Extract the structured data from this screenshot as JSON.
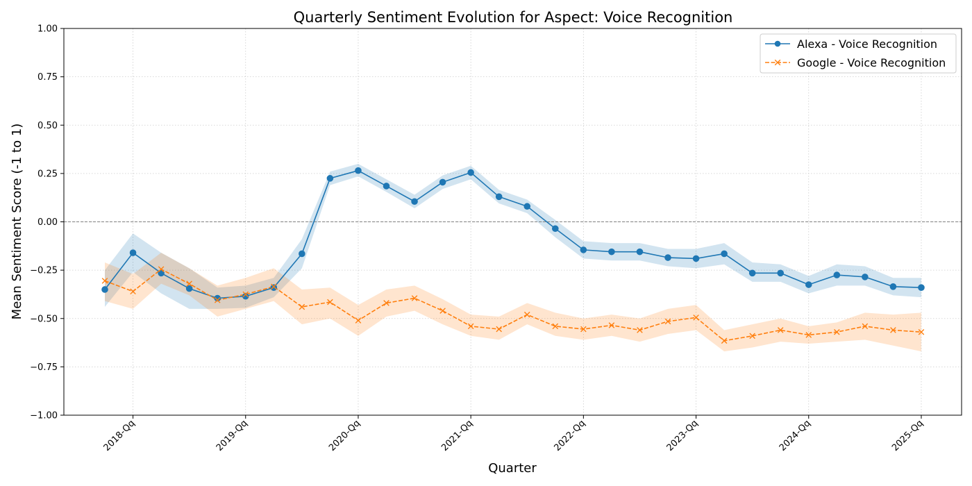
{
  "chart_data": {
    "type": "line",
    "title": "Quarterly Sentiment Evolution for Aspect: Voice Recognition",
    "xlabel": "Quarter",
    "ylabel": "Mean Sentiment Score (-1 to 1)",
    "ylim": [
      -1,
      1
    ],
    "yticks": [
      "-1.00",
      "-0.75",
      "-0.50",
      "-0.25",
      "0.00",
      "0.25",
      "0.50",
      "0.75",
      "1.00"
    ],
    "x_tick_labels": [
      "2018-Qq",
      "2019-Qq",
      "2020-Qq",
      "2021-Qq",
      "2022-Qq",
      "2023-Qq",
      "2024-Qq",
      "2025-Qq"
    ],
    "x_tick_indices": [
      1,
      5,
      9,
      13,
      17,
      21,
      25,
      29
    ],
    "grid": true,
    "reference_line": 0,
    "legend_position": "top-right",
    "series": [
      {
        "name": "Alexa - Voice Recognition",
        "color": "#1f77b4",
        "marker": "circle",
        "linestyle": "solid",
        "values": [
          -0.35,
          -0.16,
          -0.265,
          -0.345,
          -0.395,
          -0.385,
          -0.34,
          -0.165,
          0.225,
          0.265,
          0.185,
          0.105,
          0.205,
          0.255,
          0.13,
          0.08,
          -0.035,
          -0.145,
          -0.155,
          -0.155,
          -0.185,
          -0.19,
          -0.165,
          -0.265,
          -0.265,
          -0.325,
          -0.275,
          -0.285,
          -0.335,
          -0.34
        ],
        "lower": [
          -0.44,
          -0.26,
          -0.37,
          -0.45,
          -0.45,
          -0.445,
          -0.39,
          -0.24,
          0.19,
          0.235,
          0.155,
          0.07,
          0.17,
          0.22,
          0.095,
          0.045,
          -0.08,
          -0.19,
          -0.2,
          -0.2,
          -0.23,
          -0.24,
          -0.22,
          -0.31,
          -0.31,
          -0.37,
          -0.33,
          -0.33,
          -0.38,
          -0.39
        ],
        "upper": [
          -0.25,
          -0.06,
          -0.16,
          -0.24,
          -0.34,
          -0.33,
          -0.29,
          -0.09,
          0.26,
          0.3,
          0.22,
          0.14,
          0.24,
          0.29,
          0.165,
          0.115,
          0.01,
          -0.1,
          -0.11,
          -0.11,
          -0.14,
          -0.14,
          -0.11,
          -0.21,
          -0.22,
          -0.28,
          -0.22,
          -0.23,
          -0.29,
          -0.29
        ]
      },
      {
        "name": "Google - Voice Recognition",
        "color": "#ff7f0e",
        "marker": "x",
        "linestyle": "dashed",
        "values": [
          -0.305,
          -0.36,
          -0.245,
          -0.32,
          -0.405,
          -0.375,
          -0.335,
          -0.44,
          -0.415,
          -0.51,
          -0.42,
          -0.395,
          -0.46,
          -0.54,
          -0.555,
          -0.48,
          -0.54,
          -0.555,
          -0.535,
          -0.56,
          -0.515,
          -0.495,
          -0.615,
          -0.59,
          -0.56,
          -0.585,
          -0.57,
          -0.54,
          -0.56,
          -0.57
        ],
        "lower": [
          -0.41,
          -0.45,
          -0.32,
          -0.38,
          -0.49,
          -0.45,
          -0.41,
          -0.53,
          -0.5,
          -0.59,
          -0.49,
          -0.46,
          -0.53,
          -0.59,
          -0.61,
          -0.53,
          -0.59,
          -0.61,
          -0.59,
          -0.62,
          -0.58,
          -0.56,
          -0.67,
          -0.65,
          -0.62,
          -0.63,
          -0.62,
          -0.61,
          -0.64,
          -0.67
        ],
        "upper": [
          -0.21,
          -0.27,
          -0.16,
          -0.24,
          -0.33,
          -0.29,
          -0.24,
          -0.35,
          -0.34,
          -0.43,
          -0.35,
          -0.33,
          -0.4,
          -0.48,
          -0.49,
          -0.42,
          -0.47,
          -0.5,
          -0.48,
          -0.5,
          -0.45,
          -0.43,
          -0.56,
          -0.53,
          -0.5,
          -0.54,
          -0.52,
          -0.47,
          -0.48,
          -0.47
        ]
      }
    ]
  }
}
